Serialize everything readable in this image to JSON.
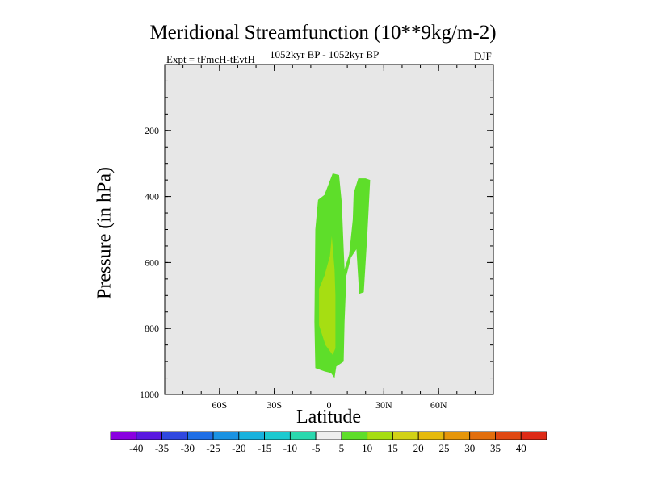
{
  "chart_data": {
    "type": "contour",
    "title": "Meridional Streamfunction (10**9kg/m-2)",
    "subtitle_left": "Expt = tFmcH-tEvtH",
    "subtitle_center": "1052kyr BP - 1052kyr BP",
    "subtitle_right": "DJF",
    "xlabel": "Latitude",
    "ylabel": "Pressure (in hPa)",
    "xlim": [
      -90,
      90
    ],
    "ylim": [
      1000,
      0
    ],
    "x_ticks": [
      {
        "value": -60,
        "label": "60S"
      },
      {
        "value": -30,
        "label": "30S"
      },
      {
        "value": 0,
        "label": "0"
      },
      {
        "value": 30,
        "label": "30N"
      },
      {
        "value": 60,
        "label": "60N"
      }
    ],
    "y_ticks": [
      {
        "value": 200,
        "label": "200"
      },
      {
        "value": 400,
        "label": "400"
      },
      {
        "value": 600,
        "label": "600"
      },
      {
        "value": 800,
        "label": "800"
      },
      {
        "value": 1000,
        "label": "1000"
      }
    ],
    "colorbar": {
      "levels": [
        -40,
        -35,
        -30,
        -25,
        -20,
        -15,
        -10,
        -5,
        5,
        10,
        15,
        20,
        25,
        30,
        35,
        40
      ],
      "colors": [
        "#8a00e0",
        "#5a18e0",
        "#3048e0",
        "#1e6ee6",
        "#1a92e2",
        "#18b2de",
        "#1ccad0",
        "#2ad8ae",
        "#eeeeee",
        "#5ede2a",
        "#a6de12",
        "#d2d216",
        "#e6ba0c",
        "#e6960a",
        "#e26e0c",
        "#e04812",
        "#de2a16"
      ]
    },
    "filled_regions": [
      {
        "level": "5 to 10",
        "color": "#5ede2a",
        "polygon": [
          [
            -7.5,
            920
          ],
          [
            -8,
            780
          ],
          [
            -7.5,
            500
          ],
          [
            -6,
            410
          ],
          [
            -2.5,
            395
          ],
          [
            2,
            330
          ],
          [
            5.5,
            335
          ],
          [
            7,
            420
          ],
          [
            8,
            560
          ],
          [
            8.5,
            620
          ],
          [
            11,
            575
          ],
          [
            13,
            470
          ],
          [
            13.5,
            390
          ],
          [
            16,
            345
          ],
          [
            20,
            345
          ],
          [
            22.5,
            350
          ],
          [
            21,
            510
          ],
          [
            19,
            690
          ],
          [
            16.5,
            695
          ],
          [
            15,
            560
          ],
          [
            12,
            585
          ],
          [
            9.5,
            640
          ],
          [
            8.5,
            780
          ],
          [
            8,
            900
          ],
          [
            4,
            915
          ],
          [
            3,
            950
          ],
          [
            1,
            935
          ],
          [
            -2.5,
            930
          ]
        ]
      },
      {
        "level": "10 to 15",
        "color": "#a6de12",
        "polygon": [
          [
            -5.5,
            790
          ],
          [
            -5.5,
            680
          ],
          [
            -2.5,
            640
          ],
          [
            0.5,
            580
          ],
          [
            1.5,
            520
          ],
          [
            3,
            620
          ],
          [
            3.5,
            700
          ],
          [
            3.5,
            790
          ],
          [
            3.5,
            860
          ],
          [
            2,
            880
          ],
          [
            -2,
            850
          ]
        ]
      }
    ],
    "background_color": "#e7e7e7"
  }
}
